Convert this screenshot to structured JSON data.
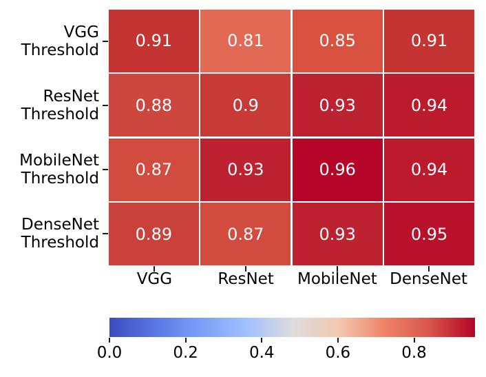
{
  "chart_data": {
    "type": "heatmap",
    "title": "",
    "xlabel": "",
    "ylabel": "",
    "row_labels": [
      "VGG\nThreshold",
      "ResNet\nThreshold",
      "MobileNet\nThreshold",
      "DenseNet\nThreshold"
    ],
    "col_labels": [
      "VGG",
      "ResNet",
      "MobileNet",
      "DenseNet"
    ],
    "values": [
      [
        0.91,
        0.81,
        0.85,
        0.91
      ],
      [
        0.88,
        0.9,
        0.93,
        0.94
      ],
      [
        0.87,
        0.93,
        0.96,
        0.94
      ],
      [
        0.89,
        0.87,
        0.93,
        0.95
      ]
    ],
    "cell_labels": [
      [
        "0.91",
        "0.81",
        "0.85",
        "0.91"
      ],
      [
        "0.88",
        "0.9",
        "0.93",
        "0.94"
      ],
      [
        "0.87",
        "0.93",
        "0.96",
        "0.94"
      ],
      [
        "0.89",
        "0.87",
        "0.93",
        "0.95"
      ]
    ],
    "colormap": "coolwarm",
    "vmin": 0.0,
    "vmax": 0.96,
    "grid_line_color": "#ffffff",
    "cell_text_color": "#ffffff",
    "axis_label_color": "#000000",
    "cell_colors": {
      "0.81": "#e26a54",
      "0.85": "#d8523f",
      "0.87": "#d14b3f",
      "0.88": "#cd473f",
      "0.89": "#ca413b",
      "0.9": "#c73a36",
      "0.91": "#c43432",
      "0.93": "#bd2231",
      "0.94": "#bb1b2d",
      "0.95": "#b8112c",
      "0.96": "#b5062a"
    },
    "colorbar": {
      "orientation": "horizontal",
      "tick_labels": [
        "0.0",
        "0.2",
        "0.4",
        "0.6",
        "0.8"
      ],
      "tick_values": [
        0.0,
        0.2,
        0.4,
        0.6,
        0.8
      ],
      "gradient_stops": [
        {
          "pos": 0,
          "color": "#3b4cc0"
        },
        {
          "pos": 12.5,
          "color": "#5977e3"
        },
        {
          "pos": 25,
          "color": "#7b9ff9"
        },
        {
          "pos": 37.5,
          "color": "#a1c0ff"
        },
        {
          "pos": 50,
          "color": "#dddcdc"
        },
        {
          "pos": 62.5,
          "color": "#f2cab1"
        },
        {
          "pos": 75,
          "color": "#ee8468"
        },
        {
          "pos": 87.5,
          "color": "#d9564a"
        },
        {
          "pos": 100,
          "color": "#b40426"
        }
      ]
    }
  }
}
